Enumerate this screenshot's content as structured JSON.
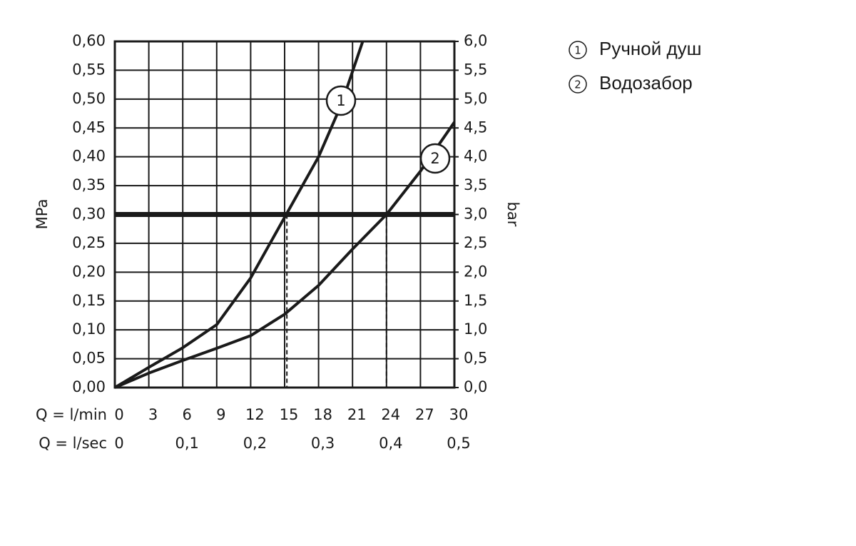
{
  "chart_data": {
    "type": "line",
    "xlabel": "Q = l/min",
    "x2label": "Q = l/sec",
    "ylabel": "MPa",
    "y2label": "bar",
    "xlim": [
      0,
      30
    ],
    "xticks": [
      0,
      3,
      6,
      9,
      12,
      15,
      18,
      21,
      24,
      27,
      30
    ],
    "x2lim": [
      0,
      0.5
    ],
    "x2ticks": [
      0,
      {
        "value": 0.1,
        "label": "0,1"
      },
      {
        "value": 0.2,
        "label": "0,2"
      },
      {
        "value": 0.3,
        "label": "0,3"
      },
      {
        "value": 0.4,
        "label": "0,4"
      },
      {
        "value": 0.5,
        "label": "0,5"
      }
    ],
    "ylim": [
      0,
      0.6
    ],
    "yticks": [
      {
        "value": 0,
        "label": "0,00"
      },
      {
        "value": 0.05,
        "label": "0,05"
      },
      {
        "value": 0.1,
        "label": "0,10"
      },
      {
        "value": 0.15,
        "label": "0,15"
      },
      {
        "value": 0.2,
        "label": "0,20"
      },
      {
        "value": 0.25,
        "label": "0,25"
      },
      {
        "value": 0.3,
        "label": "0,30"
      },
      {
        "value": 0.35,
        "label": "0,35"
      },
      {
        "value": 0.4,
        "label": "0,40"
      },
      {
        "value": 0.45,
        "label": "0,45"
      },
      {
        "value": 0.5,
        "label": "0,50"
      },
      {
        "value": 0.55,
        "label": "0,55"
      },
      {
        "value": 0.6,
        "label": "0,60"
      }
    ],
    "y2lim": [
      0,
      6
    ],
    "y2ticks": [
      {
        "value": 0,
        "label": "0,0"
      },
      {
        "value": 0.5,
        "label": "0,5"
      },
      {
        "value": 1,
        "label": "1,0"
      },
      {
        "value": 1.5,
        "label": "1,5"
      },
      {
        "value": 2,
        "label": "2,0"
      },
      {
        "value": 2.5,
        "label": "2,5"
      },
      {
        "value": 3,
        "label": "3,0"
      },
      {
        "value": 3.5,
        "label": "3,5"
      },
      {
        "value": 4,
        "label": "4,0"
      },
      {
        "value": 4.5,
        "label": "4,5"
      },
      {
        "value": 5,
        "label": "5,0"
      },
      {
        "value": 5.5,
        "label": "5,5"
      },
      {
        "value": 6,
        "label": "6,0"
      }
    ],
    "grid": true,
    "hline": 0.3,
    "vlines": [
      15.2,
      24
    ],
    "series": [
      {
        "name": "Ручной душ",
        "marker": "1",
        "color": "#1a1a1a",
        "x": [
          0,
          3,
          6,
          9,
          12,
          15,
          18,
          20,
          21.9
        ],
        "values": [
          0,
          0.035,
          0.069,
          0.109,
          0.19,
          0.295,
          0.4,
          0.49,
          0.6
        ]
      },
      {
        "name": "Водозабор",
        "marker": "2",
        "color": "#1a1a1a",
        "x": [
          0,
          3,
          6,
          9,
          12,
          15,
          18,
          21,
          24,
          27,
          30
        ],
        "values": [
          0,
          0.025,
          0.047,
          0.068,
          0.09,
          0.127,
          0.177,
          0.24,
          0.3,
          0.375,
          0.46
        ]
      }
    ]
  }
}
